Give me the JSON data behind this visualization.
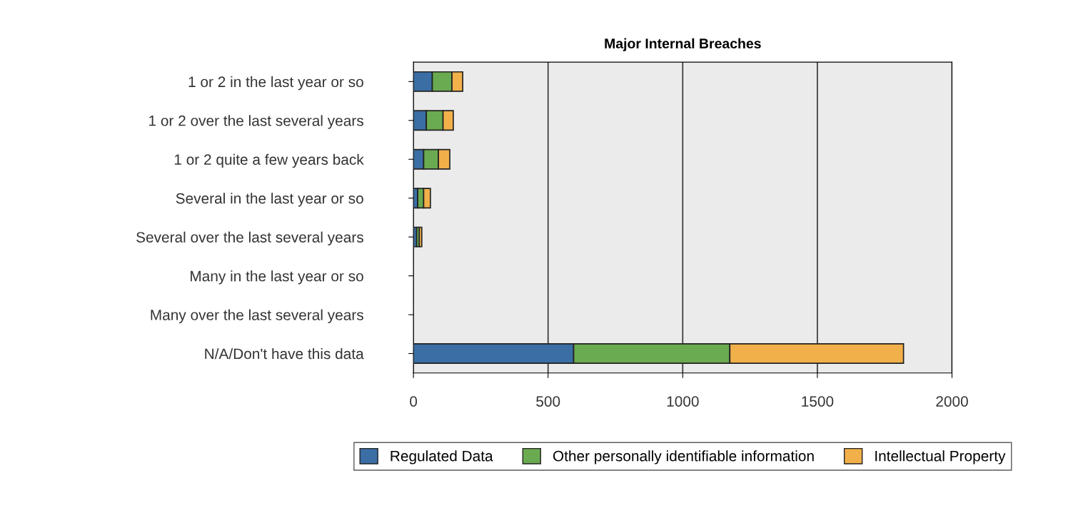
{
  "chart_data": {
    "type": "bar",
    "orientation": "horizontal",
    "stacked": true,
    "title": "Major Internal Breaches",
    "categories": [
      "1 or 2 in the last year or so",
      "1 or 2 over the last several years",
      "1 or 2 quite a few years back",
      "Several in the last year or so",
      "Several over the last several years",
      "Many in the last year or so",
      "Many over the last several years",
      "N/A/Don't have this data"
    ],
    "series": [
      {
        "name": "Regulated Data",
        "color": "#3a6ea5",
        "values": [
          70,
          48,
          38,
          16,
          12,
          null,
          null,
          595
        ]
      },
      {
        "name": "Other personally identifiable information",
        "color": "#6aaa50",
        "values": [
          73,
          62,
          55,
          22,
          10,
          null,
          null,
          580
        ]
      },
      {
        "name": "Intellectual Property",
        "color": "#f2b04a",
        "values": [
          40,
          38,
          42,
          25,
          9,
          null,
          null,
          645
        ]
      }
    ],
    "xlim": [
      0,
      2000
    ],
    "xticks": [
      0,
      500,
      1000,
      1500,
      2000
    ],
    "grid": "x",
    "legend": "bottom"
  }
}
